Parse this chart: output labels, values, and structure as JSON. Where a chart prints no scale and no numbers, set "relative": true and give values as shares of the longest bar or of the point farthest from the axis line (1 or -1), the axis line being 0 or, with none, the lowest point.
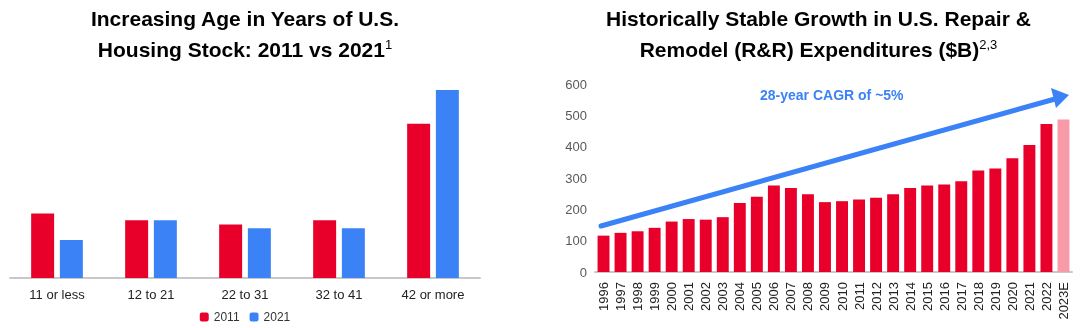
{
  "chart_data": [
    {
      "type": "bar",
      "title": "Increasing Age in Years of U.S. Housing Stock: 2011 vs 2021$^{1}$",
      "categories": [
        "11 or less",
        "12 to 21",
        "22 to 31",
        "32 to 41",
        "42 or more"
      ],
      "relative": true,
      "legend": "bottom",
      "series": [
        {
          "name": "2011",
          "color": "#e8002a",
          "values": [
            0.343,
            0.307,
            0.285,
            0.307,
            0.82
          ]
        },
        {
          "name": "2021",
          "color": "#3b82f6",
          "values": [
            0.202,
            0.307,
            0.265,
            0.265,
            1
          ]
        }
      ]
    },
    {
      "type": "bar",
      "title": "Historically Stable Growth in U.S. Repair & Remodel (R&R) Expenditures ($B)$^{2,3}$",
      "categories": [
        "1996",
        "1997",
        "1998",
        "1999",
        "2000",
        "2001",
        "2002",
        "2003",
        "2004",
        "2005",
        "2006",
        "2007",
        "2008",
        "2009",
        "2010",
        "2011",
        "2012",
        "2013",
        "2014",
        "2015",
        "2016",
        "2017",
        "2018",
        "2019",
        "2020",
        "2021",
        "2022",
        "2023E"
      ],
      "values": [
        116,
        125,
        130,
        141,
        161,
        169,
        167,
        175,
        220,
        240,
        276,
        268,
        248,
        223,
        226,
        231,
        237,
        248,
        268,
        276,
        279,
        290,
        324,
        330,
        363,
        405,
        472,
        487
      ],
      "colors": [
        "#e8002a",
        "#e8002a",
        "#e8002a",
        "#e8002a",
        "#e8002a",
        "#e8002a",
        "#e8002a",
        "#e8002a",
        "#e8002a",
        "#e8002a",
        "#e8002a",
        "#e8002a",
        "#e8002a",
        "#e8002a",
        "#e8002a",
        "#e8002a",
        "#e8002a",
        "#e8002a",
        "#e8002a",
        "#e8002a",
        "#e8002a",
        "#e8002a",
        "#e8002a",
        "#e8002a",
        "#e8002a",
        "#e8002a",
        "#e8002a",
        "#f99aa8"
      ],
      "ylim": [
        0,
        600
      ],
      "yticks": [
        0,
        100,
        200,
        300,
        400,
        500,
        600
      ],
      "annotations": [
        "28-year CAGR of ~5%"
      ]
    }
  ]
}
